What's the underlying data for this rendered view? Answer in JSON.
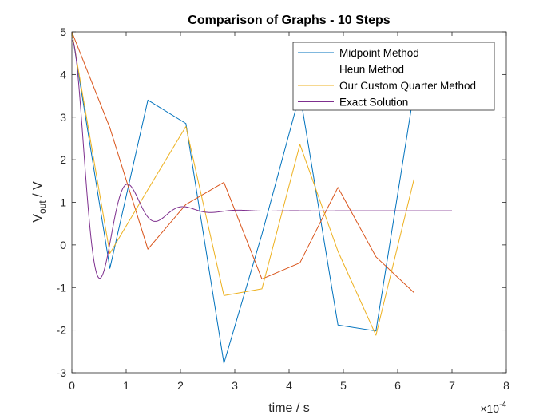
{
  "chart_data": {
    "type": "line",
    "title": "Comparison of Graphs - 10 Steps",
    "xlabel": "time / s",
    "ylabel": {
      "main": "V",
      "sub": "out",
      "rest": " / V"
    },
    "x_exponent": {
      "base": "×10",
      "power": "-4"
    },
    "xlim": [
      0,
      8
    ],
    "ylim": [
      -3,
      5
    ],
    "xticks": [
      0,
      1,
      2,
      3,
      4,
      5,
      6,
      7,
      8
    ],
    "yticks": [
      -3,
      -2,
      -1,
      0,
      1,
      2,
      3,
      4,
      5
    ],
    "grid": false,
    "legend_position": "top-right",
    "series": [
      {
        "name": "Midpoint Method",
        "color": "#0072BD",
        "x": [
          0,
          0.7,
          1.4,
          2.1,
          2.8,
          3.5,
          4.2,
          4.9,
          5.6,
          6.3
        ],
        "y": [
          5,
          -0.55,
          3.4,
          2.85,
          -2.78,
          0.25,
          3.55,
          -1.88,
          -2.02,
          3.6
        ]
      },
      {
        "name": "Heun Method",
        "color": "#D95319",
        "x": [
          0,
          0.7,
          1.4,
          2.1,
          2.8,
          3.5,
          4.2,
          4.9,
          5.6,
          6.3
        ],
        "y": [
          5,
          2.75,
          -0.1,
          0.95,
          1.47,
          -0.8,
          -0.42,
          1.35,
          -0.28,
          -1.12
        ]
      },
      {
        "name": "Our Custom Quarter Method",
        "color": "#EDB120",
        "x": [
          0,
          0.7,
          1.4,
          2.1,
          2.8,
          3.5,
          4.2,
          4.9,
          5.6,
          6.3
        ],
        "y": [
          5,
          -0.2,
          1.3,
          2.78,
          -1.19,
          -1.03,
          2.36,
          -0.15,
          -2.12,
          1.54
        ]
      },
      {
        "name": "Exact Solution",
        "color": "#7E2F8E",
        "model": {
          "a": 0.8,
          "b": 4.2,
          "tau": 0.55,
          "period": 1.02,
          "peak_t": 0.05,
          "t_end": 7
        }
      }
    ]
  }
}
